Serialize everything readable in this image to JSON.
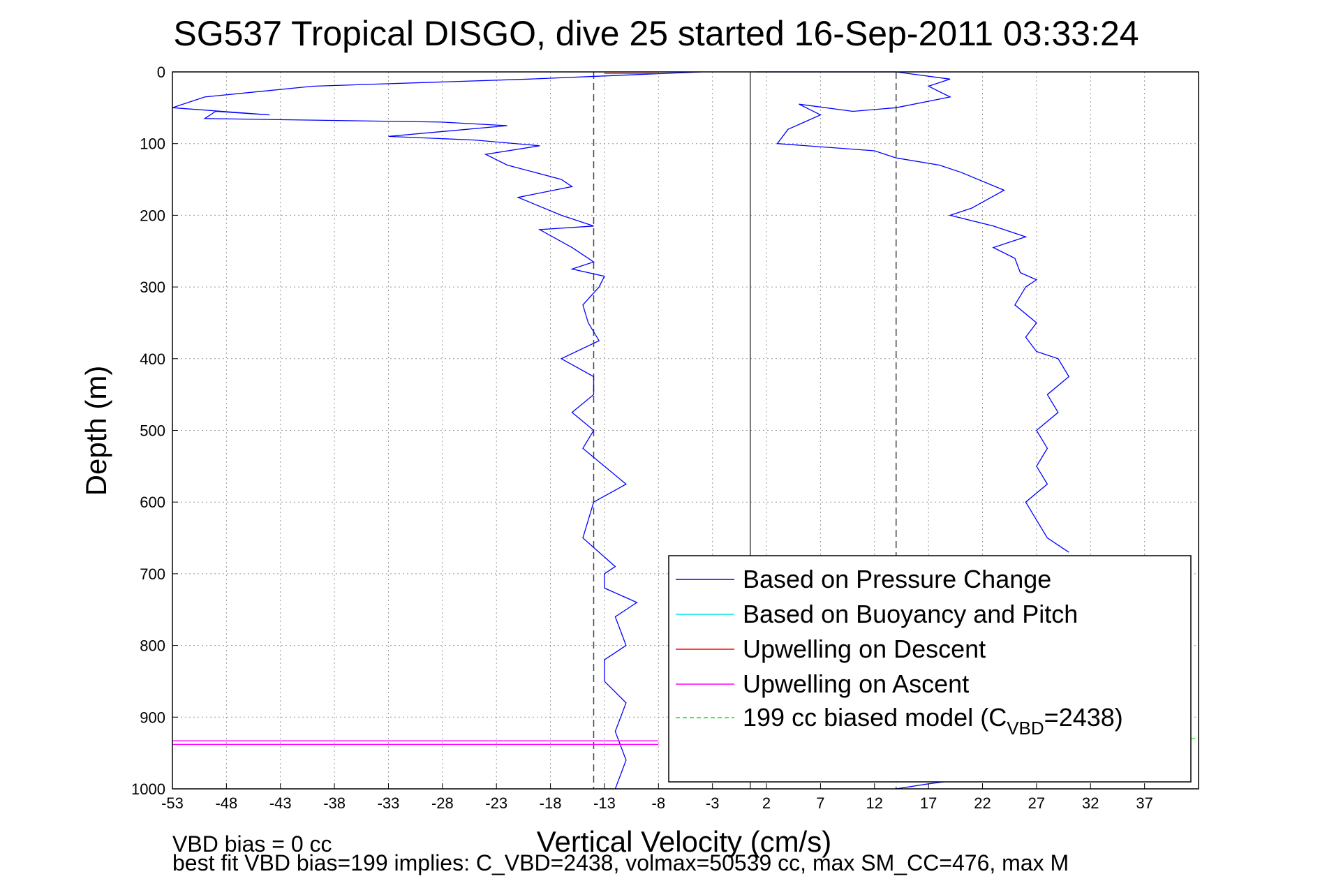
{
  "chart_data": {
    "type": "line",
    "title": "SG537 Tropical DISGO, dive 25 started 16-Sep-2011 03:33:24",
    "xlabel": "Vertical Velocity (cm/s)",
    "ylabel": "Depth (m)",
    "xlim": [
      -53,
      42
    ],
    "ylim": [
      1000,
      0
    ],
    "y_reversed": true,
    "x_ticks": [
      "-53",
      "-48",
      "-43",
      "-38",
      "-33",
      "-28",
      "-23",
      "-18",
      "-13",
      "-8",
      "-3",
      "2",
      "7",
      "12",
      "17",
      "22",
      "27",
      "32",
      "37"
    ],
    "y_ticks": [
      "0",
      "100",
      "200",
      "300",
      "400",
      "500",
      "600",
      "700",
      "800",
      "900",
      "1000"
    ],
    "grid": true,
    "legend_placement": "bottom-right",
    "legend": [
      {
        "label": "Based on Pressure Change",
        "color": "#0000ff"
      },
      {
        "label": "Based on Buoyancy and Pitch",
        "color": "#00e5e5"
      },
      {
        "label": "Upwelling on Descent",
        "color": "#ff0000"
      },
      {
        "label": "Upwelling on Ascent",
        "color": "#ff00ff"
      },
      {
        "label_main": "199 cc biased model (C",
        "label_sub": "VBD",
        "label_end": "=2438)",
        "color": "#00ee00",
        "dashed": true
      }
    ],
    "series": [
      {
        "name": "Based on Pressure Change",
        "color": "#0000ff",
        "segments": [
          {
            "x": [
              -4,
              -20,
              -40,
              -50,
              -53,
              -44,
              -49,
              -50,
              -28,
              -22,
              -33,
              -25,
              -19,
              -24,
              -22,
              -17,
              -16,
              -21,
              -17,
              -14,
              -19,
              -16,
              -14,
              -16,
              -13,
              -13.5,
              -15,
              -14.5,
              -13.5,
              -17,
              -14,
              -14,
              -16,
              -14,
              -15,
              -13,
              -11,
              -14,
              -15,
              -12,
              -13,
              -13,
              -10,
              -12,
              -11,
              -13,
              -13,
              -11,
              -12,
              -11,
              -12
            ],
            "y": [
              0,
              10,
              20,
              35,
              50,
              60,
              55,
              65,
              70,
              75,
              90,
              95,
              103,
              115,
              130,
              150,
              160,
              175,
              200,
              215,
              220,
              245,
              265,
              275,
              285,
              300,
              325,
              350,
              375,
              400,
              425,
              450,
              475,
              500,
              525,
              550,
              575,
              600,
              650,
              690,
              700,
              720,
              740,
              760,
              800,
              820,
              850,
              880,
              920,
              960,
              1000
            ]
          },
          {
            "x": [
              1,
              5,
              14,
              19,
              17,
              19,
              14,
              10,
              5,
              7,
              4,
              3,
              12,
              14,
              18,
              20,
              24,
              21,
              19,
              23,
              26,
              23,
              25,
              25.5,
              27,
              26,
              25,
              27,
              26,
              27,
              29,
              30,
              28,
              29,
              27,
              28,
              27,
              28,
              26,
              27,
              28,
              29,
              30
            ],
            "y": [
              0,
              0,
              0,
              10,
              20,
              35,
              50,
              55,
              45,
              60,
              80,
              100,
              110,
              120,
              130,
              140,
              165,
              190,
              200,
              215,
              230,
              245,
              260,
              280,
              290,
              300,
              325,
              350,
              370,
              390,
              400,
              425,
              450,
              475,
              500,
              525,
              550,
              575,
              600,
              625,
              650,
              660,
              670
            ]
          },
          {
            "x": [
              14,
              17,
              21
            ],
            "y": [
              1000,
              993,
              985
            ]
          }
        ]
      },
      {
        "name": "Upwelling on Descent",
        "color": "#ff0000",
        "segments": [
          {
            "x": [
              -13,
              -8
            ],
            "y": [
              2,
              2
            ]
          }
        ]
      },
      {
        "name": "Upwelling on Ascent",
        "color": "#ff00ff",
        "segments": [
          {
            "x": [
              -53,
              -8
            ],
            "y": [
              933,
              933
            ]
          },
          {
            "x": [
              -53,
              -8
            ],
            "y": [
              938,
              938
            ]
          }
        ]
      },
      {
        "name": "199 cc biased model (CVBD=2438)",
        "color": "#00ee00",
        "dashed": true,
        "segments": [
          {
            "x": [
              40,
              42
            ],
            "y": [
              930,
              930
            ]
          }
        ]
      }
    ],
    "reference_lines": [
      {
        "x": -14,
        "style": "dashed",
        "color": "#444444"
      },
      {
        "x": 0.5,
        "style": "solid",
        "color": "#444444"
      },
      {
        "x": 14,
        "style": "dashed",
        "color": "#444444"
      }
    ],
    "footer": [
      "VBD bias = 0 cc",
      "best fit VBD bias=199 implies: C_VBD=2438, volmax=50539 cc, max SM_CC=476, max M"
    ]
  }
}
